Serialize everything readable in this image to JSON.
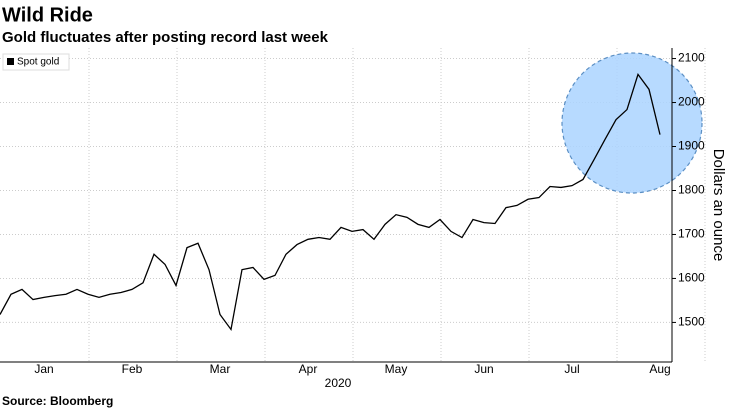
{
  "chart_data": {
    "type": "line",
    "title": "Wild Ride",
    "subtitle": "Gold fluctuates after posting record last week",
    "y_label": "Dollars an ounce",
    "x_label": "2020",
    "source": "Source: Bloomberg",
    "categories": [
      null,
      null,
      null,
      null,
      "Jan",
      null,
      null,
      null,
      null,
      null,
      null,
      null,
      "Feb",
      null,
      null,
      null,
      null,
      null,
      null,
      null,
      "Mar",
      null,
      null,
      null,
      null,
      null,
      null,
      null,
      "Apr",
      null,
      null,
      null,
      null,
      null,
      null,
      null,
      "May",
      null,
      null,
      null,
      null,
      null,
      null,
      null,
      "Jun",
      null,
      null,
      null,
      null,
      null,
      null,
      null,
      "Jul",
      null,
      null,
      null,
      null,
      null,
      null,
      null,
      "Aug"
    ],
    "series": [
      {
        "name": "Spot gold",
        "color": "#000000",
        "values": [
          1518,
          1564,
          1575,
          1552,
          1557,
          1561,
          1564,
          1575,
          1564,
          1557,
          1564,
          1568,
          1575,
          1590,
          1655,
          1632,
          1584,
          1670,
          1680,
          1620,
          1518,
          1484,
          1620,
          1625,
          1598,
          1607,
          1655,
          1677,
          1689,
          1693,
          1689,
          1716,
          1707,
          1711,
          1689,
          1723,
          1745,
          1739,
          1723,
          1716,
          1734,
          1707,
          1693,
          1734,
          1727,
          1725,
          1761,
          1766,
          1780,
          1784,
          1809,
          1807,
          1811,
          1825,
          1870,
          1916,
          1961,
          1984,
          2064,
          2030,
          1927
        ]
      }
    ],
    "ylim": [
      1410,
      2124
    ],
    "yticks": [
      1500,
      1600,
      1700,
      1800,
      1900,
      2000,
      2100
    ],
    "grid": true,
    "legend": "top-left"
  }
}
